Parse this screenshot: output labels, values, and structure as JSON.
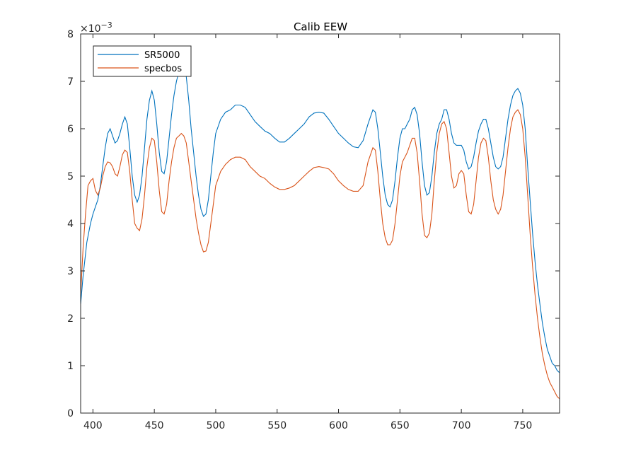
{
  "chart_data": {
    "type": "line",
    "title": "Calib EEW",
    "xlabel": "",
    "ylabel": "",
    "y_exponent_label": "×10",
    "y_exponent_power": "−3",
    "xlim": [
      390,
      780
    ],
    "ylim": [
      0,
      8
    ],
    "x_ticks": [
      400,
      450,
      500,
      550,
      600,
      650,
      700,
      750
    ],
    "y_ticks": [
      0,
      1,
      2,
      3,
      4,
      5,
      6,
      7,
      8
    ],
    "legend_position": "top-left",
    "grid": false,
    "series": [
      {
        "name": "SR5000",
        "color": "#0072BD",
        "points": [
          [
            390,
            2.3
          ],
          [
            392,
            2.9
          ],
          [
            395,
            3.6
          ],
          [
            398,
            4.0
          ],
          [
            400,
            4.2
          ],
          [
            402,
            4.35
          ],
          [
            404,
            4.5
          ],
          [
            406,
            4.8
          ],
          [
            408,
            5.2
          ],
          [
            410,
            5.6
          ],
          [
            412,
            5.9
          ],
          [
            414,
            6.0
          ],
          [
            416,
            5.85
          ],
          [
            418,
            5.7
          ],
          [
            420,
            5.75
          ],
          [
            422,
            5.9
          ],
          [
            424,
            6.1
          ],
          [
            426,
            6.25
          ],
          [
            428,
            6.1
          ],
          [
            430,
            5.6
          ],
          [
            432,
            5.0
          ],
          [
            434,
            4.6
          ],
          [
            436,
            4.45
          ],
          [
            438,
            4.6
          ],
          [
            440,
            5.0
          ],
          [
            442,
            5.6
          ],
          [
            444,
            6.2
          ],
          [
            446,
            6.6
          ],
          [
            448,
            6.8
          ],
          [
            450,
            6.6
          ],
          [
            452,
            6.1
          ],
          [
            454,
            5.5
          ],
          [
            456,
            5.1
          ],
          [
            458,
            5.05
          ],
          [
            460,
            5.3
          ],
          [
            462,
            5.8
          ],
          [
            464,
            6.3
          ],
          [
            466,
            6.7
          ],
          [
            468,
            7.0
          ],
          [
            470,
            7.2
          ],
          [
            472,
            7.35
          ],
          [
            474,
            7.3
          ],
          [
            476,
            7.1
          ],
          [
            478,
            6.6
          ],
          [
            480,
            6.0
          ],
          [
            482,
            5.5
          ],
          [
            484,
            5.0
          ],
          [
            486,
            4.6
          ],
          [
            488,
            4.3
          ],
          [
            490,
            4.15
          ],
          [
            492,
            4.2
          ],
          [
            494,
            4.5
          ],
          [
            496,
            5.0
          ],
          [
            498,
            5.5
          ],
          [
            500,
            5.9
          ],
          [
            504,
            6.2
          ],
          [
            508,
            6.35
          ],
          [
            512,
            6.4
          ],
          [
            516,
            6.5
          ],
          [
            520,
            6.5
          ],
          [
            524,
            6.45
          ],
          [
            528,
            6.3
          ],
          [
            532,
            6.15
          ],
          [
            536,
            6.05
          ],
          [
            540,
            5.95
          ],
          [
            544,
            5.9
          ],
          [
            548,
            5.8
          ],
          [
            552,
            5.72
          ],
          [
            556,
            5.72
          ],
          [
            560,
            5.8
          ],
          [
            564,
            5.9
          ],
          [
            568,
            6.0
          ],
          [
            572,
            6.1
          ],
          [
            576,
            6.25
          ],
          [
            580,
            6.33
          ],
          [
            584,
            6.35
          ],
          [
            588,
            6.33
          ],
          [
            592,
            6.2
          ],
          [
            596,
            6.05
          ],
          [
            600,
            5.9
          ],
          [
            604,
            5.8
          ],
          [
            608,
            5.7
          ],
          [
            612,
            5.62
          ],
          [
            616,
            5.6
          ],
          [
            620,
            5.75
          ],
          [
            624,
            6.1
          ],
          [
            628,
            6.4
          ],
          [
            630,
            6.35
          ],
          [
            632,
            6.0
          ],
          [
            634,
            5.5
          ],
          [
            636,
            5.0
          ],
          [
            638,
            4.6
          ],
          [
            640,
            4.4
          ],
          [
            642,
            4.35
          ],
          [
            644,
            4.5
          ],
          [
            646,
            4.9
          ],
          [
            648,
            5.4
          ],
          [
            650,
            5.8
          ],
          [
            652,
            6.0
          ],
          [
            654,
            6.0
          ],
          [
            656,
            6.1
          ],
          [
            658,
            6.2
          ],
          [
            660,
            6.4
          ],
          [
            662,
            6.45
          ],
          [
            664,
            6.3
          ],
          [
            666,
            5.9
          ],
          [
            668,
            5.3
          ],
          [
            670,
            4.8
          ],
          [
            672,
            4.6
          ],
          [
            674,
            4.65
          ],
          [
            676,
            5.0
          ],
          [
            678,
            5.5
          ],
          [
            680,
            5.9
          ],
          [
            682,
            6.1
          ],
          [
            684,
            6.2
          ],
          [
            686,
            6.4
          ],
          [
            688,
            6.4
          ],
          [
            690,
            6.2
          ],
          [
            692,
            5.9
          ],
          [
            694,
            5.7
          ],
          [
            696,
            5.65
          ],
          [
            698,
            5.65
          ],
          [
            700,
            5.65
          ],
          [
            702,
            5.55
          ],
          [
            704,
            5.3
          ],
          [
            706,
            5.15
          ],
          [
            708,
            5.2
          ],
          [
            710,
            5.4
          ],
          [
            712,
            5.7
          ],
          [
            714,
            5.95
          ],
          [
            716,
            6.1
          ],
          [
            718,
            6.2
          ],
          [
            720,
            6.2
          ],
          [
            722,
            6.0
          ],
          [
            724,
            5.7
          ],
          [
            726,
            5.4
          ],
          [
            728,
            5.2
          ],
          [
            730,
            5.15
          ],
          [
            732,
            5.2
          ],
          [
            734,
            5.4
          ],
          [
            736,
            5.8
          ],
          [
            738,
            6.2
          ],
          [
            740,
            6.5
          ],
          [
            742,
            6.7
          ],
          [
            744,
            6.8
          ],
          [
            746,
            6.85
          ],
          [
            748,
            6.75
          ],
          [
            750,
            6.5
          ],
          [
            752,
            6.0
          ],
          [
            754,
            5.2
          ],
          [
            756,
            4.5
          ],
          [
            758,
            3.8
          ],
          [
            760,
            3.2
          ],
          [
            762,
            2.7
          ],
          [
            764,
            2.3
          ],
          [
            766,
            1.9
          ],
          [
            768,
            1.6
          ],
          [
            770,
            1.35
          ],
          [
            772,
            1.2
          ],
          [
            774,
            1.05
          ],
          [
            776,
            1.0
          ],
          [
            778,
            0.9
          ],
          [
            780,
            0.85
          ]
        ]
      },
      {
        "name": "specbos",
        "color": "#D95319",
        "points": [
          [
            390,
            2.5
          ],
          [
            392,
            3.5
          ],
          [
            394,
            4.2
          ],
          [
            396,
            4.8
          ],
          [
            398,
            4.9
          ],
          [
            400,
            4.95
          ],
          [
            402,
            4.7
          ],
          [
            404,
            4.6
          ],
          [
            406,
            4.75
          ],
          [
            408,
            5.0
          ],
          [
            410,
            5.2
          ],
          [
            412,
            5.3
          ],
          [
            414,
            5.28
          ],
          [
            416,
            5.2
          ],
          [
            418,
            5.05
          ],
          [
            420,
            5.0
          ],
          [
            422,
            5.2
          ],
          [
            424,
            5.45
          ],
          [
            426,
            5.55
          ],
          [
            428,
            5.5
          ],
          [
            430,
            5.1
          ],
          [
            432,
            4.5
          ],
          [
            434,
            4.0
          ],
          [
            436,
            3.9
          ],
          [
            438,
            3.85
          ],
          [
            440,
            4.1
          ],
          [
            442,
            4.6
          ],
          [
            444,
            5.2
          ],
          [
            446,
            5.6
          ],
          [
            448,
            5.8
          ],
          [
            450,
            5.75
          ],
          [
            452,
            5.3
          ],
          [
            454,
            4.7
          ],
          [
            456,
            4.25
          ],
          [
            458,
            4.2
          ],
          [
            460,
            4.4
          ],
          [
            462,
            4.9
          ],
          [
            464,
            5.3
          ],
          [
            466,
            5.6
          ],
          [
            468,
            5.8
          ],
          [
            470,
            5.85
          ],
          [
            472,
            5.9
          ],
          [
            474,
            5.85
          ],
          [
            476,
            5.7
          ],
          [
            478,
            5.3
          ],
          [
            480,
            4.9
          ],
          [
            482,
            4.5
          ],
          [
            484,
            4.1
          ],
          [
            486,
            3.8
          ],
          [
            488,
            3.55
          ],
          [
            490,
            3.4
          ],
          [
            492,
            3.42
          ],
          [
            494,
            3.6
          ],
          [
            496,
            4.0
          ],
          [
            498,
            4.4
          ],
          [
            500,
            4.8
          ],
          [
            504,
            5.1
          ],
          [
            508,
            5.25
          ],
          [
            512,
            5.35
          ],
          [
            516,
            5.4
          ],
          [
            520,
            5.4
          ],
          [
            524,
            5.35
          ],
          [
            528,
            5.2
          ],
          [
            532,
            5.1
          ],
          [
            536,
            5.0
          ],
          [
            540,
            4.95
          ],
          [
            544,
            4.85
          ],
          [
            548,
            4.77
          ],
          [
            552,
            4.72
          ],
          [
            556,
            4.72
          ],
          [
            560,
            4.75
          ],
          [
            564,
            4.8
          ],
          [
            568,
            4.9
          ],
          [
            572,
            5.0
          ],
          [
            576,
            5.1
          ],
          [
            580,
            5.18
          ],
          [
            584,
            5.2
          ],
          [
            588,
            5.18
          ],
          [
            592,
            5.15
          ],
          [
            596,
            5.05
          ],
          [
            600,
            4.9
          ],
          [
            604,
            4.8
          ],
          [
            608,
            4.72
          ],
          [
            612,
            4.68
          ],
          [
            616,
            4.68
          ],
          [
            620,
            4.8
          ],
          [
            624,
            5.3
          ],
          [
            628,
            5.6
          ],
          [
            630,
            5.55
          ],
          [
            632,
            5.1
          ],
          [
            634,
            4.5
          ],
          [
            636,
            4.0
          ],
          [
            638,
            3.7
          ],
          [
            640,
            3.55
          ],
          [
            642,
            3.55
          ],
          [
            644,
            3.65
          ],
          [
            646,
            4.0
          ],
          [
            648,
            4.5
          ],
          [
            650,
            5.0
          ],
          [
            652,
            5.3
          ],
          [
            654,
            5.4
          ],
          [
            656,
            5.5
          ],
          [
            658,
            5.65
          ],
          [
            660,
            5.8
          ],
          [
            662,
            5.8
          ],
          [
            664,
            5.5
          ],
          [
            666,
            4.9
          ],
          [
            668,
            4.2
          ],
          [
            670,
            3.75
          ],
          [
            672,
            3.7
          ],
          [
            674,
            3.8
          ],
          [
            676,
            4.2
          ],
          [
            678,
            4.9
          ],
          [
            680,
            5.5
          ],
          [
            682,
            5.9
          ],
          [
            684,
            6.1
          ],
          [
            686,
            6.15
          ],
          [
            688,
            6.0
          ],
          [
            690,
            5.5
          ],
          [
            692,
            5.0
          ],
          [
            694,
            4.75
          ],
          [
            696,
            4.8
          ],
          [
            698,
            5.05
          ],
          [
            700,
            5.12
          ],
          [
            702,
            5.05
          ],
          [
            704,
            4.6
          ],
          [
            706,
            4.25
          ],
          [
            708,
            4.2
          ],
          [
            710,
            4.4
          ],
          [
            712,
            4.9
          ],
          [
            714,
            5.4
          ],
          [
            716,
            5.7
          ],
          [
            718,
            5.8
          ],
          [
            720,
            5.75
          ],
          [
            722,
            5.4
          ],
          [
            724,
            4.9
          ],
          [
            726,
            4.5
          ],
          [
            728,
            4.3
          ],
          [
            730,
            4.2
          ],
          [
            732,
            4.3
          ],
          [
            734,
            4.6
          ],
          [
            736,
            5.1
          ],
          [
            738,
            5.6
          ],
          [
            740,
            6.0
          ],
          [
            742,
            6.25
          ],
          [
            744,
            6.35
          ],
          [
            746,
            6.4
          ],
          [
            748,
            6.3
          ],
          [
            750,
            6.0
          ],
          [
            752,
            5.4
          ],
          [
            754,
            4.6
          ],
          [
            756,
            3.8
          ],
          [
            758,
            3.1
          ],
          [
            760,
            2.5
          ],
          [
            762,
            2.0
          ],
          [
            764,
            1.6
          ],
          [
            766,
            1.25
          ],
          [
            768,
            1.0
          ],
          [
            770,
            0.8
          ],
          [
            772,
            0.65
          ],
          [
            774,
            0.55
          ],
          [
            776,
            0.45
          ],
          [
            778,
            0.35
          ],
          [
            780,
            0.3
          ]
        ]
      }
    ]
  }
}
